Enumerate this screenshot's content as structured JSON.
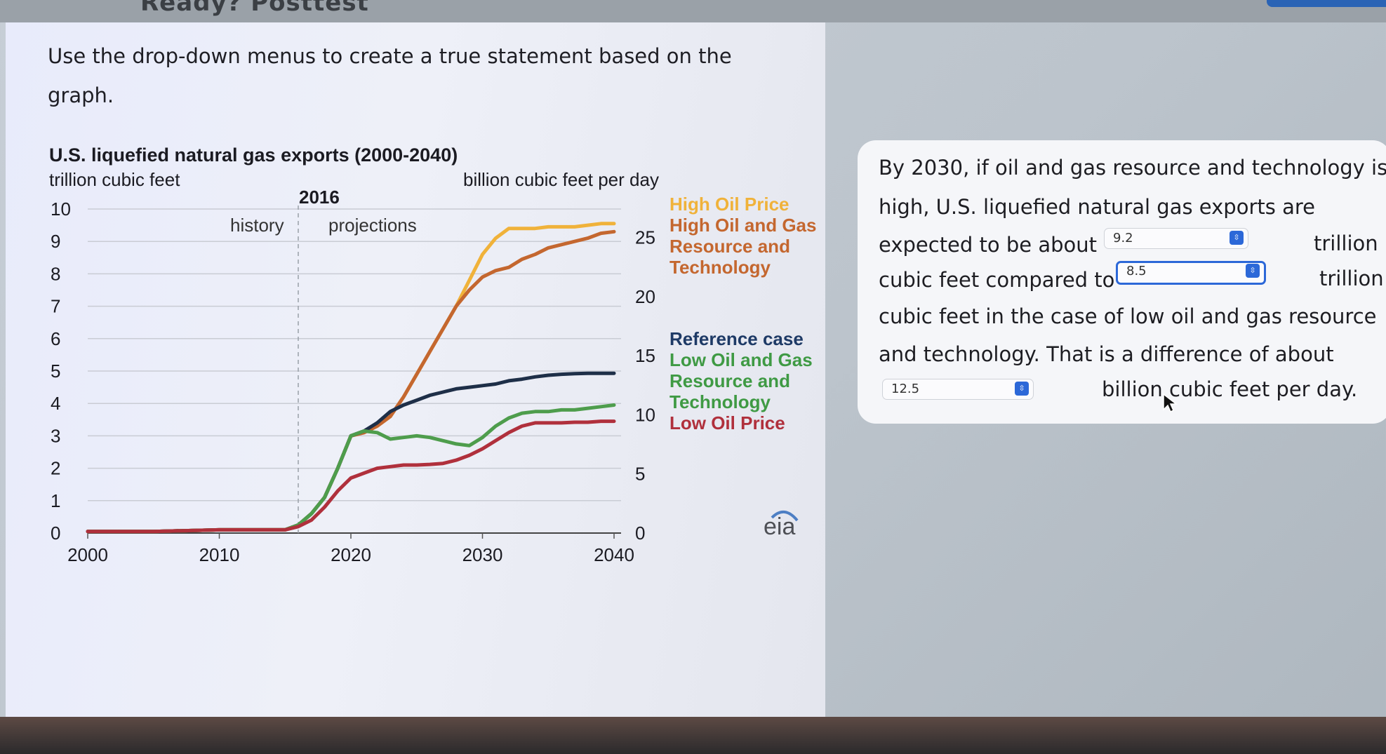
{
  "header": {
    "title": "Ready? Posttest"
  },
  "prompt": {
    "text": "Use the drop-down menus to create a true statement based on the graph."
  },
  "chart_data": {
    "type": "line",
    "title": "U.S. liquefied natural gas exports (2000-2040)",
    "left_axis_label": "trillion cubic feet",
    "right_axis_label": "billion cubic feet per day",
    "divider_year_label": "2016",
    "history_label": "history",
    "projections_label": "projections",
    "x_ticks": [
      "2000",
      "2010",
      "2020",
      "2030",
      "2040"
    ],
    "y_left_ticks": [
      "0",
      "1",
      "2",
      "3",
      "4",
      "5",
      "6",
      "7",
      "8",
      "9",
      "10"
    ],
    "y_right_ticks": [
      "0",
      "5",
      "10",
      "15",
      "20",
      "25"
    ],
    "xlim": [
      2000,
      2040
    ],
    "ylim": [
      0,
      10
    ],
    "y2lim": [
      0,
      27.4
    ],
    "divider_year": 2016,
    "series": [
      {
        "name": "High Oil Price",
        "color": "#f0b23a",
        "x": [
          2000,
          2005,
          2010,
          2015,
          2016,
          2017,
          2018,
          2019,
          2020,
          2021,
          2022,
          2023,
          2024,
          2025,
          2026,
          2027,
          2028,
          2029,
          2030,
          2031,
          2032,
          2033,
          2034,
          2035,
          2036,
          2037,
          2038,
          2039,
          2040
        ],
        "y": [
          0.05,
          0.05,
          0.1,
          0.1,
          0.25,
          0.6,
          1.1,
          2.0,
          3.0,
          3.1,
          3.3,
          3.6,
          4.2,
          4.9,
          5.6,
          6.3,
          7.0,
          7.8,
          8.6,
          9.1,
          9.4,
          9.4,
          9.4,
          9.45,
          9.45,
          9.45,
          9.5,
          9.55,
          9.55
        ]
      },
      {
        "name": "High Oil and Gas Resource and Technology",
        "color": "#c4672f",
        "x": [
          2000,
          2005,
          2010,
          2015,
          2016,
          2017,
          2018,
          2019,
          2020,
          2021,
          2022,
          2023,
          2024,
          2025,
          2026,
          2027,
          2028,
          2029,
          2030,
          2031,
          2032,
          2033,
          2034,
          2035,
          2036,
          2037,
          2038,
          2039,
          2040
        ],
        "y": [
          0.05,
          0.05,
          0.1,
          0.1,
          0.25,
          0.6,
          1.1,
          2.0,
          3.0,
          3.1,
          3.3,
          3.6,
          4.2,
          4.9,
          5.6,
          6.3,
          7.0,
          7.5,
          7.9,
          8.1,
          8.2,
          8.45,
          8.6,
          8.8,
          8.9,
          9.0,
          9.1,
          9.25,
          9.3
        ]
      },
      {
        "name": "Reference case",
        "color": "#1e2f48",
        "x": [
          2000,
          2005,
          2010,
          2015,
          2016,
          2017,
          2018,
          2019,
          2020,
          2021,
          2022,
          2023,
          2024,
          2025,
          2026,
          2027,
          2028,
          2029,
          2030,
          2031,
          2032,
          2033,
          2034,
          2035,
          2036,
          2037,
          2038,
          2039,
          2040
        ],
        "y": [
          0.05,
          0.05,
          0.1,
          0.1,
          0.25,
          0.6,
          1.1,
          2.0,
          3.0,
          3.15,
          3.4,
          3.75,
          3.95,
          4.1,
          4.25,
          4.35,
          4.45,
          4.5,
          4.55,
          4.6,
          4.7,
          4.75,
          4.82,
          4.87,
          4.9,
          4.92,
          4.93,
          4.93,
          4.93
        ]
      },
      {
        "name": "Low Oil and Gas Resource and Technology",
        "color": "#4e9d4c",
        "x": [
          2000,
          2005,
          2010,
          2015,
          2016,
          2017,
          2018,
          2019,
          2020,
          2021,
          2022,
          2023,
          2024,
          2025,
          2026,
          2027,
          2028,
          2029,
          2030,
          2031,
          2032,
          2033,
          2034,
          2035,
          2036,
          2037,
          2038,
          2039,
          2040
        ],
        "y": [
          0.05,
          0.05,
          0.1,
          0.1,
          0.25,
          0.6,
          1.1,
          2.0,
          3.0,
          3.15,
          3.1,
          2.9,
          2.95,
          3.0,
          2.95,
          2.85,
          2.75,
          2.7,
          2.95,
          3.3,
          3.55,
          3.7,
          3.75,
          3.75,
          3.8,
          3.8,
          3.85,
          3.9,
          3.95
        ]
      },
      {
        "name": "Low Oil Price",
        "color": "#b0303c",
        "x": [
          2000,
          2005,
          2010,
          2015,
          2016,
          2017,
          2018,
          2019,
          2020,
          2021,
          2022,
          2023,
          2024,
          2025,
          2026,
          2027,
          2028,
          2029,
          2030,
          2031,
          2032,
          2033,
          2034,
          2035,
          2036,
          2037,
          2038,
          2039,
          2040
        ],
        "y": [
          0.05,
          0.05,
          0.1,
          0.1,
          0.2,
          0.4,
          0.8,
          1.3,
          1.7,
          1.85,
          2.0,
          2.05,
          2.1,
          2.1,
          2.12,
          2.15,
          2.25,
          2.4,
          2.6,
          2.85,
          3.1,
          3.3,
          3.4,
          3.4,
          3.4,
          3.42,
          3.42,
          3.45,
          3.45
        ]
      }
    ],
    "legend": [
      {
        "lines": [
          "High Oil Price"
        ],
        "color": "#f0b23a"
      },
      {
        "lines": [
          "High Oil and Gas",
          "Resource and",
          "Technology"
        ],
        "color": "#c4672f"
      },
      {
        "lines": [
          "Reference case"
        ],
        "color": "#1e3a66"
      },
      {
        "lines": [
          "Low Oil and Gas",
          "Resource and",
          "Technology"
        ],
        "color": "#3f9a44"
      },
      {
        "lines": [
          "Low Oil Price"
        ],
        "color": "#b0303c"
      }
    ],
    "logo": "eia"
  },
  "question": {
    "line1": "By 2030, if oil and gas resource and technology is",
    "line2": "high, U.S. liquefied natural gas exports are",
    "line3_a": "expected to be about",
    "line3_b": "trillion",
    "line4_a": "cubic feet compared to",
    "line4_b": "trillion",
    "line5": "cubic feet in the case of low oil and gas resource",
    "line6": "and technology. That is a difference of about",
    "line7_b": "billion cubic feet per day.",
    "dropdown1_value": "9.2",
    "dropdown2_value": "8.5",
    "dropdown3_value": "12.5"
  },
  "icons": {
    "chevron": "chevron-updown-icon",
    "cursor": "mouse-cursor-icon"
  }
}
